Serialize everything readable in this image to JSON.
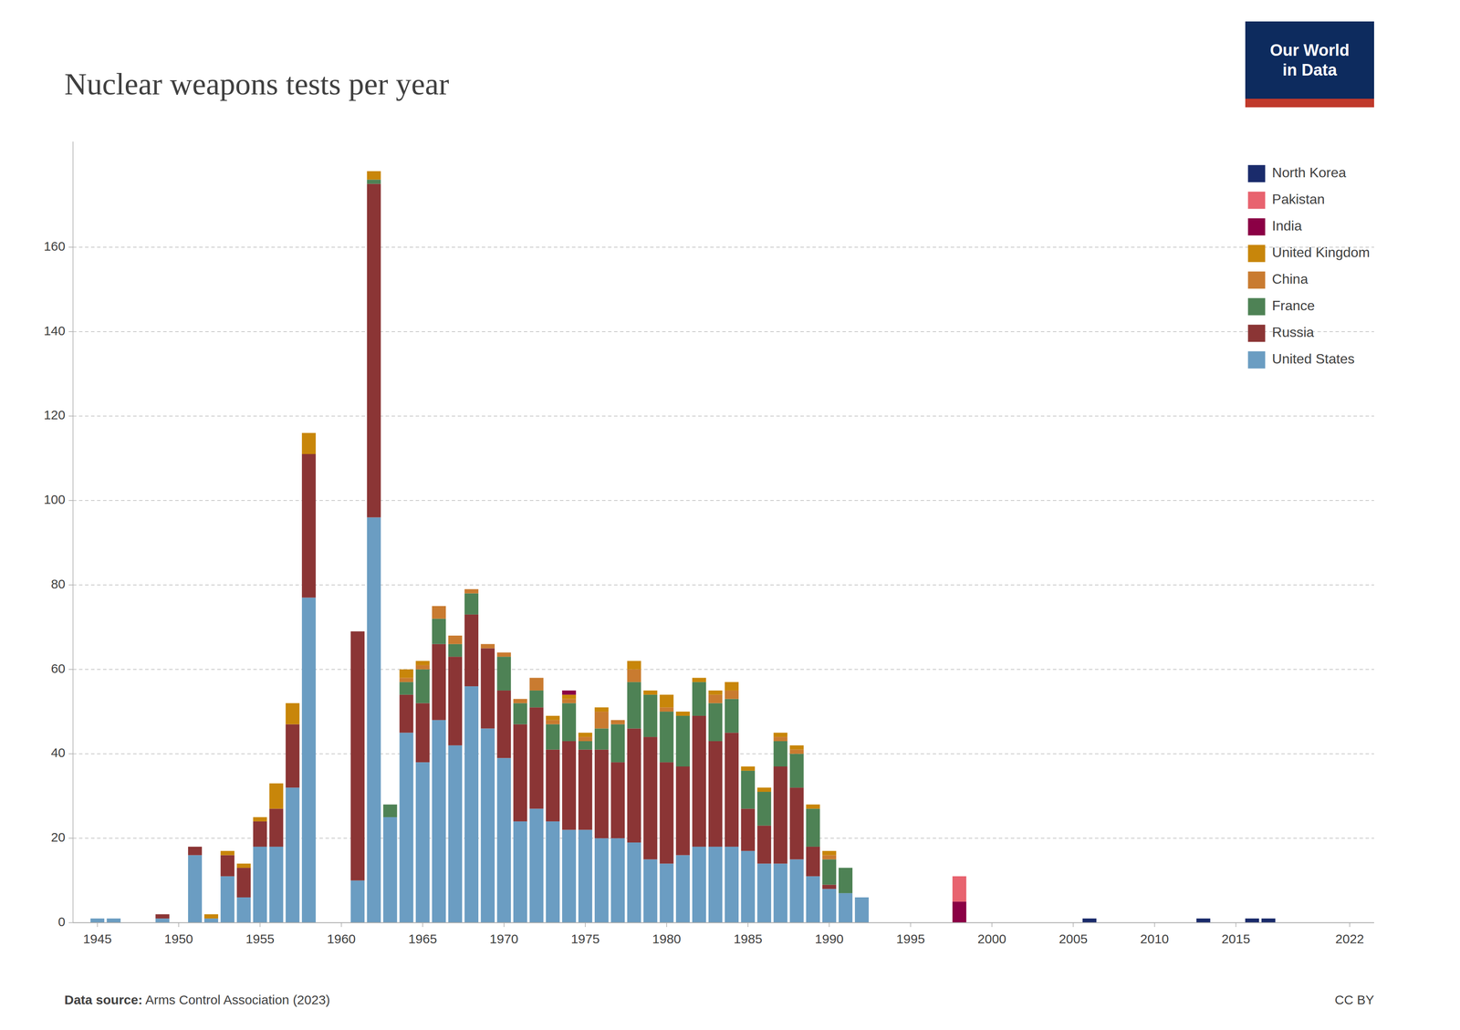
{
  "chart_data": {
    "type": "bar",
    "title": "Nuclear weapons tests per year",
    "annotations": [
      "Data source:",
      " Arms Control Association (2023)",
      "CC BY",
      "Our World\nin Data"
    ],
    "x": [
      1945,
      1946,
      1947,
      1948,
      1949,
      1950,
      1951,
      1952,
      1953,
      1954,
      1955,
      1956,
      1957,
      1958,
      1959,
      1960,
      1961,
      1962,
      1963,
      1964,
      1965,
      1966,
      1967,
      1968,
      1969,
      1970,
      1971,
      1972,
      1973,
      1974,
      1975,
      1976,
      1977,
      1978,
      1979,
      1980,
      1981,
      1982,
      1983,
      1984,
      1985,
      1986,
      1987,
      1988,
      1989,
      1990,
      1991,
      1992,
      1993,
      1994,
      1995,
      1996,
      1997,
      1998,
      1999,
      2000,
      2001,
      2002,
      2003,
      2004,
      2005,
      2006,
      2007,
      2008,
      2009,
      2010,
      2011,
      2012,
      2013,
      2014,
      2015,
      2016,
      2017,
      2018,
      2019,
      2020,
      2021,
      2022
    ],
    "series": [
      {
        "name": "United States",
        "color": "#6b9dc2",
        "values": [
          1,
          1,
          0,
          0,
          1,
          0,
          16,
          1,
          11,
          6,
          18,
          18,
          32,
          77,
          0,
          0,
          10,
          96,
          25,
          45,
          38,
          48,
          42,
          56,
          46,
          39,
          24,
          27,
          24,
          22,
          22,
          20,
          20,
          19,
          15,
          14,
          16,
          18,
          18,
          18,
          17,
          14,
          14,
          15,
          11,
          8,
          7,
          6,
          0,
          0,
          0,
          0,
          0,
          0,
          0,
          0,
          0,
          0,
          0,
          0,
          0,
          0,
          0,
          0,
          0,
          0,
          0,
          0,
          0,
          0,
          0,
          0,
          0,
          0,
          0,
          0,
          0,
          0
        ]
      },
      {
        "name": "Russia",
        "color": "#8b3535",
        "values": [
          0,
          0,
          0,
          0,
          1,
          0,
          2,
          0,
          5,
          7,
          6,
          9,
          15,
          34,
          0,
          0,
          59,
          79,
          0,
          9,
          14,
          18,
          21,
          17,
          19,
          16,
          23,
          24,
          17,
          21,
          19,
          21,
          18,
          27,
          29,
          24,
          21,
          31,
          25,
          27,
          10,
          9,
          23,
          17,
          7,
          1,
          0,
          0,
          0,
          0,
          0,
          0,
          0,
          0,
          0,
          0,
          0,
          0,
          0,
          0,
          0,
          0,
          0,
          0,
          0,
          0,
          0,
          0,
          0,
          0,
          0,
          0,
          0,
          0,
          0,
          0,
          0,
          0
        ]
      },
      {
        "name": "France",
        "color": "#4e8255",
        "values": [
          0,
          0,
          0,
          0,
          0,
          0,
          0,
          0,
          0,
          0,
          0,
          0,
          0,
          0,
          0,
          0,
          0,
          1,
          3,
          3,
          8,
          6,
          3,
          5,
          0,
          8,
          5,
          4,
          6,
          9,
          2,
          5,
          9,
          11,
          10,
          12,
          12,
          8,
          9,
          8,
          9,
          8,
          6,
          8,
          9,
          6,
          6,
          0,
          0,
          0,
          0,
          0,
          0,
          0,
          0,
          0,
          0,
          0,
          0,
          0,
          0,
          0,
          0,
          0,
          0,
          0,
          0,
          0,
          0,
          0,
          0,
          0,
          0,
          0,
          0,
          0,
          0,
          0
        ]
      },
      {
        "name": "China",
        "color": "#c97b30",
        "values": [
          0,
          0,
          0,
          0,
          0,
          0,
          0,
          0,
          0,
          0,
          0,
          0,
          0,
          0,
          0,
          0,
          0,
          0,
          0,
          1,
          1,
          3,
          2,
          1,
          1,
          1,
          1,
          3,
          1,
          1,
          1,
          4,
          1,
          3,
          0,
          1,
          0,
          0,
          2,
          2,
          0,
          0,
          1,
          1,
          0,
          1,
          0,
          0,
          0,
          0,
          0,
          0,
          0,
          0,
          0,
          0,
          0,
          0,
          0,
          0,
          0,
          0,
          0,
          0,
          0,
          0,
          0,
          0,
          0,
          0,
          0,
          0,
          0,
          0,
          0,
          0,
          0,
          0
        ]
      },
      {
        "name": "United Kingdom",
        "color": "#c8860a",
        "values": [
          0,
          0,
          0,
          0,
          0,
          0,
          0,
          1,
          1,
          1,
          1,
          6,
          5,
          5,
          0,
          0,
          0,
          2,
          0,
          2,
          1,
          0,
          0,
          0,
          0,
          0,
          0,
          0,
          1,
          1,
          1,
          1,
          0,
          2,
          1,
          3,
          1,
          1,
          1,
          2,
          1,
          1,
          1,
          1,
          1,
          1,
          0,
          0,
          0,
          0,
          0,
          0,
          0,
          0,
          0,
          0,
          0,
          0,
          0,
          0,
          0,
          0,
          0,
          0,
          0,
          0,
          0,
          0,
          0,
          0,
          0,
          0,
          0,
          0,
          0,
          0,
          0,
          0
        ]
      },
      {
        "name": "India",
        "color": "#8b0045",
        "values": [
          0,
          0,
          0,
          0,
          0,
          0,
          0,
          0,
          0,
          0,
          0,
          0,
          0,
          0,
          0,
          0,
          0,
          0,
          0,
          0,
          0,
          0,
          0,
          0,
          0,
          0,
          0,
          0,
          0,
          1,
          0,
          0,
          0,
          0,
          0,
          0,
          0,
          0,
          0,
          0,
          0,
          0,
          0,
          0,
          0,
          0,
          0,
          0,
          0,
          0,
          0,
          0,
          0,
          5,
          0,
          0,
          0,
          0,
          0,
          0,
          0,
          0,
          0,
          0,
          0,
          0,
          0,
          0,
          0,
          0,
          0,
          0,
          0,
          0,
          0,
          0,
          0,
          0
        ]
      },
      {
        "name": "Pakistan",
        "color": "#e8636f",
        "values": [
          0,
          0,
          0,
          0,
          0,
          0,
          0,
          0,
          0,
          0,
          0,
          0,
          0,
          0,
          0,
          0,
          0,
          0,
          0,
          0,
          0,
          0,
          0,
          0,
          0,
          0,
          0,
          0,
          0,
          0,
          0,
          0,
          0,
          0,
          0,
          0,
          0,
          0,
          0,
          0,
          0,
          0,
          0,
          0,
          0,
          0,
          0,
          0,
          0,
          0,
          0,
          0,
          0,
          6,
          0,
          0,
          0,
          0,
          0,
          0,
          0,
          0,
          0,
          0,
          0,
          0,
          0,
          0,
          0,
          0,
          0,
          0,
          0,
          0,
          0,
          0,
          0,
          0
        ]
      },
      {
        "name": "North Korea",
        "color": "#1a2b6b",
        "values": [
          0,
          0,
          0,
          0,
          0,
          0,
          0,
          0,
          0,
          0,
          0,
          0,
          0,
          0,
          0,
          0,
          0,
          0,
          0,
          0,
          0,
          0,
          0,
          0,
          0,
          0,
          0,
          0,
          0,
          0,
          0,
          0,
          0,
          0,
          0,
          0,
          0,
          0,
          0,
          0,
          0,
          0,
          0,
          0,
          0,
          0,
          0,
          0,
          0,
          0,
          0,
          0,
          0,
          0,
          0,
          0,
          0,
          0,
          0,
          0,
          0,
          1,
          0,
          0,
          0,
          0,
          0,
          0,
          1,
          0,
          0,
          1,
          1,
          0,
          0,
          0,
          0,
          0
        ]
      }
    ],
    "stacked": true,
    "xlim": [
      1943.5,
      2023.5
    ],
    "xticks": [
      1945,
      1950,
      1955,
      1960,
      1965,
      1970,
      1975,
      1980,
      1985,
      1990,
      1995,
      2000,
      2005,
      2010,
      2015,
      2022
    ],
    "ylim": [
      0,
      185
    ],
    "yticks": [
      0,
      20,
      40,
      60,
      80,
      100,
      120,
      140,
      160
    ],
    "grid": true,
    "legend": "upper right"
  }
}
